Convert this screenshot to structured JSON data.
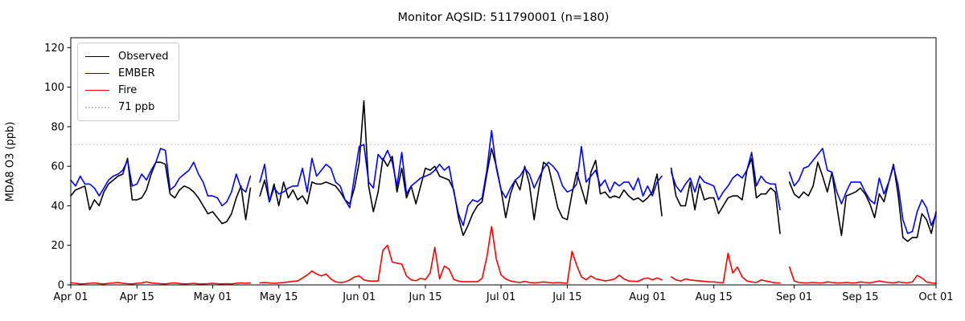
{
  "figure": {
    "title": "Monitor AQSID: 511790001 (n=180)"
  },
  "chart_data": {
    "type": "line",
    "title": "Monitor AQSID: 511790001 (n=180)",
    "xlabel": "",
    "ylabel": "MDA8 O3 (ppb)",
    "x_unit": "daily points, day 0 = Apr 01",
    "xlim": [
      0,
      183
    ],
    "ylim": [
      0,
      125
    ],
    "y_ticks": [
      0,
      20,
      40,
      60,
      80,
      100,
      120
    ],
    "x_ticks": [
      {
        "day": 0,
        "label": "Apr 01"
      },
      {
        "day": 14,
        "label": "Apr 15"
      },
      {
        "day": 30,
        "label": "May 01"
      },
      {
        "day": 44,
        "label": "May 15"
      },
      {
        "day": 61,
        "label": "Jun 01"
      },
      {
        "day": 75,
        "label": "Jun 15"
      },
      {
        "day": 91,
        "label": "Jul 01"
      },
      {
        "day": 105,
        "label": "Jul 15"
      },
      {
        "day": 122,
        "label": "Aug 01"
      },
      {
        "day": 136,
        "label": "Aug 15"
      },
      {
        "day": 153,
        "label": "Sep 01"
      },
      {
        "day": 167,
        "label": "Sep 15"
      },
      {
        "day": 183,
        "label": "Oct 01"
      }
    ],
    "grid": false,
    "legend_position": "upper left",
    "background_color": "#ffffff",
    "threshold": {
      "label": "71 ppb",
      "value": 71,
      "color": "#c8c8c8",
      "line_style": "dotted"
    },
    "series": [
      {
        "name": "Observed",
        "color": "#000000",
        "values": [
          45,
          48,
          49,
          50,
          38,
          43,
          40,
          47,
          51,
          53,
          55,
          56,
          64,
          43,
          43,
          44,
          48,
          56,
          62,
          62,
          61,
          46,
          44,
          48,
          50,
          49,
          47,
          44,
          40,
          36,
          37,
          34,
          31,
          32,
          36,
          44,
          50,
          33,
          49,
          null,
          45,
          53,
          42,
          51,
          40,
          52,
          44,
          48,
          43,
          45,
          41,
          52,
          51,
          51,
          52,
          51,
          50,
          47,
          43,
          41,
          49,
          62,
          93,
          50,
          37,
          47,
          64,
          60,
          65,
          47,
          59,
          44,
          50,
          41,
          50,
          59,
          58,
          60,
          55,
          54,
          53,
          48,
          34,
          25,
          30,
          36,
          40,
          42,
          56,
          69,
          60,
          48,
          34,
          46,
          53,
          48,
          60,
          51,
          33,
          49,
          62,
          60,
          50,
          39,
          34,
          33,
          46,
          57,
          49,
          41,
          57,
          63,
          46,
          47,
          44,
          45,
          44,
          48,
          45,
          43,
          44,
          42,
          44,
          47,
          56,
          35,
          null,
          59,
          45,
          40,
          40,
          52,
          38,
          51,
          43,
          44,
          44,
          36,
          40,
          44,
          45,
          45,
          43,
          58,
          64,
          44,
          46,
          46,
          49,
          47,
          26,
          null,
          52,
          46,
          44,
          47,
          45,
          50,
          62,
          55,
          47,
          57,
          40,
          25,
          45,
          46,
          47,
          49,
          46,
          41,
          34,
          46,
          42,
          52,
          61,
          45,
          24,
          22,
          24,
          24,
          36,
          33,
          26,
          37
        ]
      },
      {
        "name": "EMBER",
        "color": "#0000ff",
        "values": [
          53,
          50,
          55,
          51,
          51,
          49,
          45,
          49,
          53,
          55,
          56,
          58,
          63,
          50,
          51,
          56,
          53,
          58,
          62,
          69,
          68,
          48,
          50,
          54,
          56,
          58,
          62,
          56,
          52,
          45,
          45,
          44,
          40,
          42,
          47,
          56,
          49,
          47,
          55,
          null,
          52,
          61,
          42,
          49,
          46,
          47,
          49,
          50,
          50,
          59,
          47,
          64,
          55,
          58,
          61,
          59,
          52,
          50,
          43,
          39,
          55,
          70,
          71,
          52,
          49,
          66,
          63,
          68,
          62,
          50,
          67,
          46,
          50,
          52,
          54,
          55,
          56,
          58,
          61,
          58,
          60,
          47,
          36,
          30,
          40,
          43,
          42,
          44,
          58,
          78,
          59,
          48,
          44,
          49,
          53,
          55,
          59,
          56,
          49,
          54,
          59,
          62,
          60,
          57,
          50,
          47,
          48,
          51,
          70,
          52,
          55,
          58,
          50,
          53,
          47,
          52,
          50,
          52,
          52,
          48,
          54,
          45,
          50,
          45,
          52,
          55,
          null,
          57,
          50,
          47,
          51,
          54,
          47,
          55,
          52,
          51,
          50,
          43,
          47,
          50,
          54,
          56,
          54,
          58,
          67,
          50,
          55,
          52,
          51,
          51,
          38,
          null,
          57,
          50,
          53,
          59,
          60,
          63,
          66,
          69,
          58,
          57,
          47,
          41,
          47,
          52,
          52,
          52,
          47,
          43,
          41,
          54,
          46,
          52,
          60,
          50,
          33,
          26,
          27,
          37,
          43,
          39,
          30,
          36
        ]
      },
      {
        "name": "Fire",
        "color": "#ff0000",
        "values": [
          1,
          0.8,
          0.5,
          0.6,
          0.8,
          1,
          0.7,
          0.5,
          0.8,
          1,
          1.2,
          0.8,
          0.6,
          0.5,
          0.8,
          1,
          1.5,
          1,
          0.8,
          0.6,
          0.5,
          0.8,
          1,
          0.7,
          0.5,
          0.6,
          0.8,
          0.5,
          0.5,
          0.6,
          0.8,
          0.6,
          0.5,
          0.6,
          0.5,
          0.8,
          1,
          0.8,
          1,
          null,
          1,
          1.2,
          1,
          0.8,
          1,
          1.2,
          1.5,
          1.8,
          2,
          3.5,
          5,
          7,
          5.5,
          4.5,
          5.5,
          3,
          1.5,
          1.2,
          1.5,
          2.5,
          4,
          4.5,
          2.5,
          2,
          1.9,
          2,
          17.5,
          20,
          11.5,
          11,
          10.5,
          4.5,
          2.5,
          2.1,
          3.3,
          2.7,
          6,
          19,
          3,
          9.5,
          8,
          2.7,
          1.9,
          1.6,
          1.6,
          1.6,
          1.6,
          3.3,
          14,
          29.5,
          13,
          5,
          3,
          2,
          1.5,
          1.2,
          1.8,
          1.2,
          1,
          1.2,
          1.5,
          1.2,
          1,
          1.2,
          1,
          0.8,
          17,
          10,
          4,
          2.6,
          4.5,
          3,
          2.6,
          2,
          2.4,
          3,
          4.9,
          3,
          2,
          1.8,
          1.8,
          3,
          3.5,
          2.5,
          3.5,
          2.5,
          null,
          4,
          2.5,
          2,
          3,
          2.5,
          2.2,
          2,
          1.8,
          1.5,
          1.5,
          1.2,
          1,
          16,
          6,
          9,
          4,
          2,
          1.5,
          1.2,
          2.5,
          2,
          1.5,
          1,
          1,
          null,
          9,
          2,
          1.2,
          1,
          1,
          1.2,
          1,
          1,
          1.5,
          1.2,
          1,
          1,
          1.2,
          1,
          1,
          1.5,
          1.2,
          1,
          1.5,
          2,
          1.5,
          1.2,
          1,
          1.5,
          1.2,
          1,
          1.5,
          4.8,
          3.5,
          1.5,
          1,
          0.8
        ]
      }
    ]
  }
}
